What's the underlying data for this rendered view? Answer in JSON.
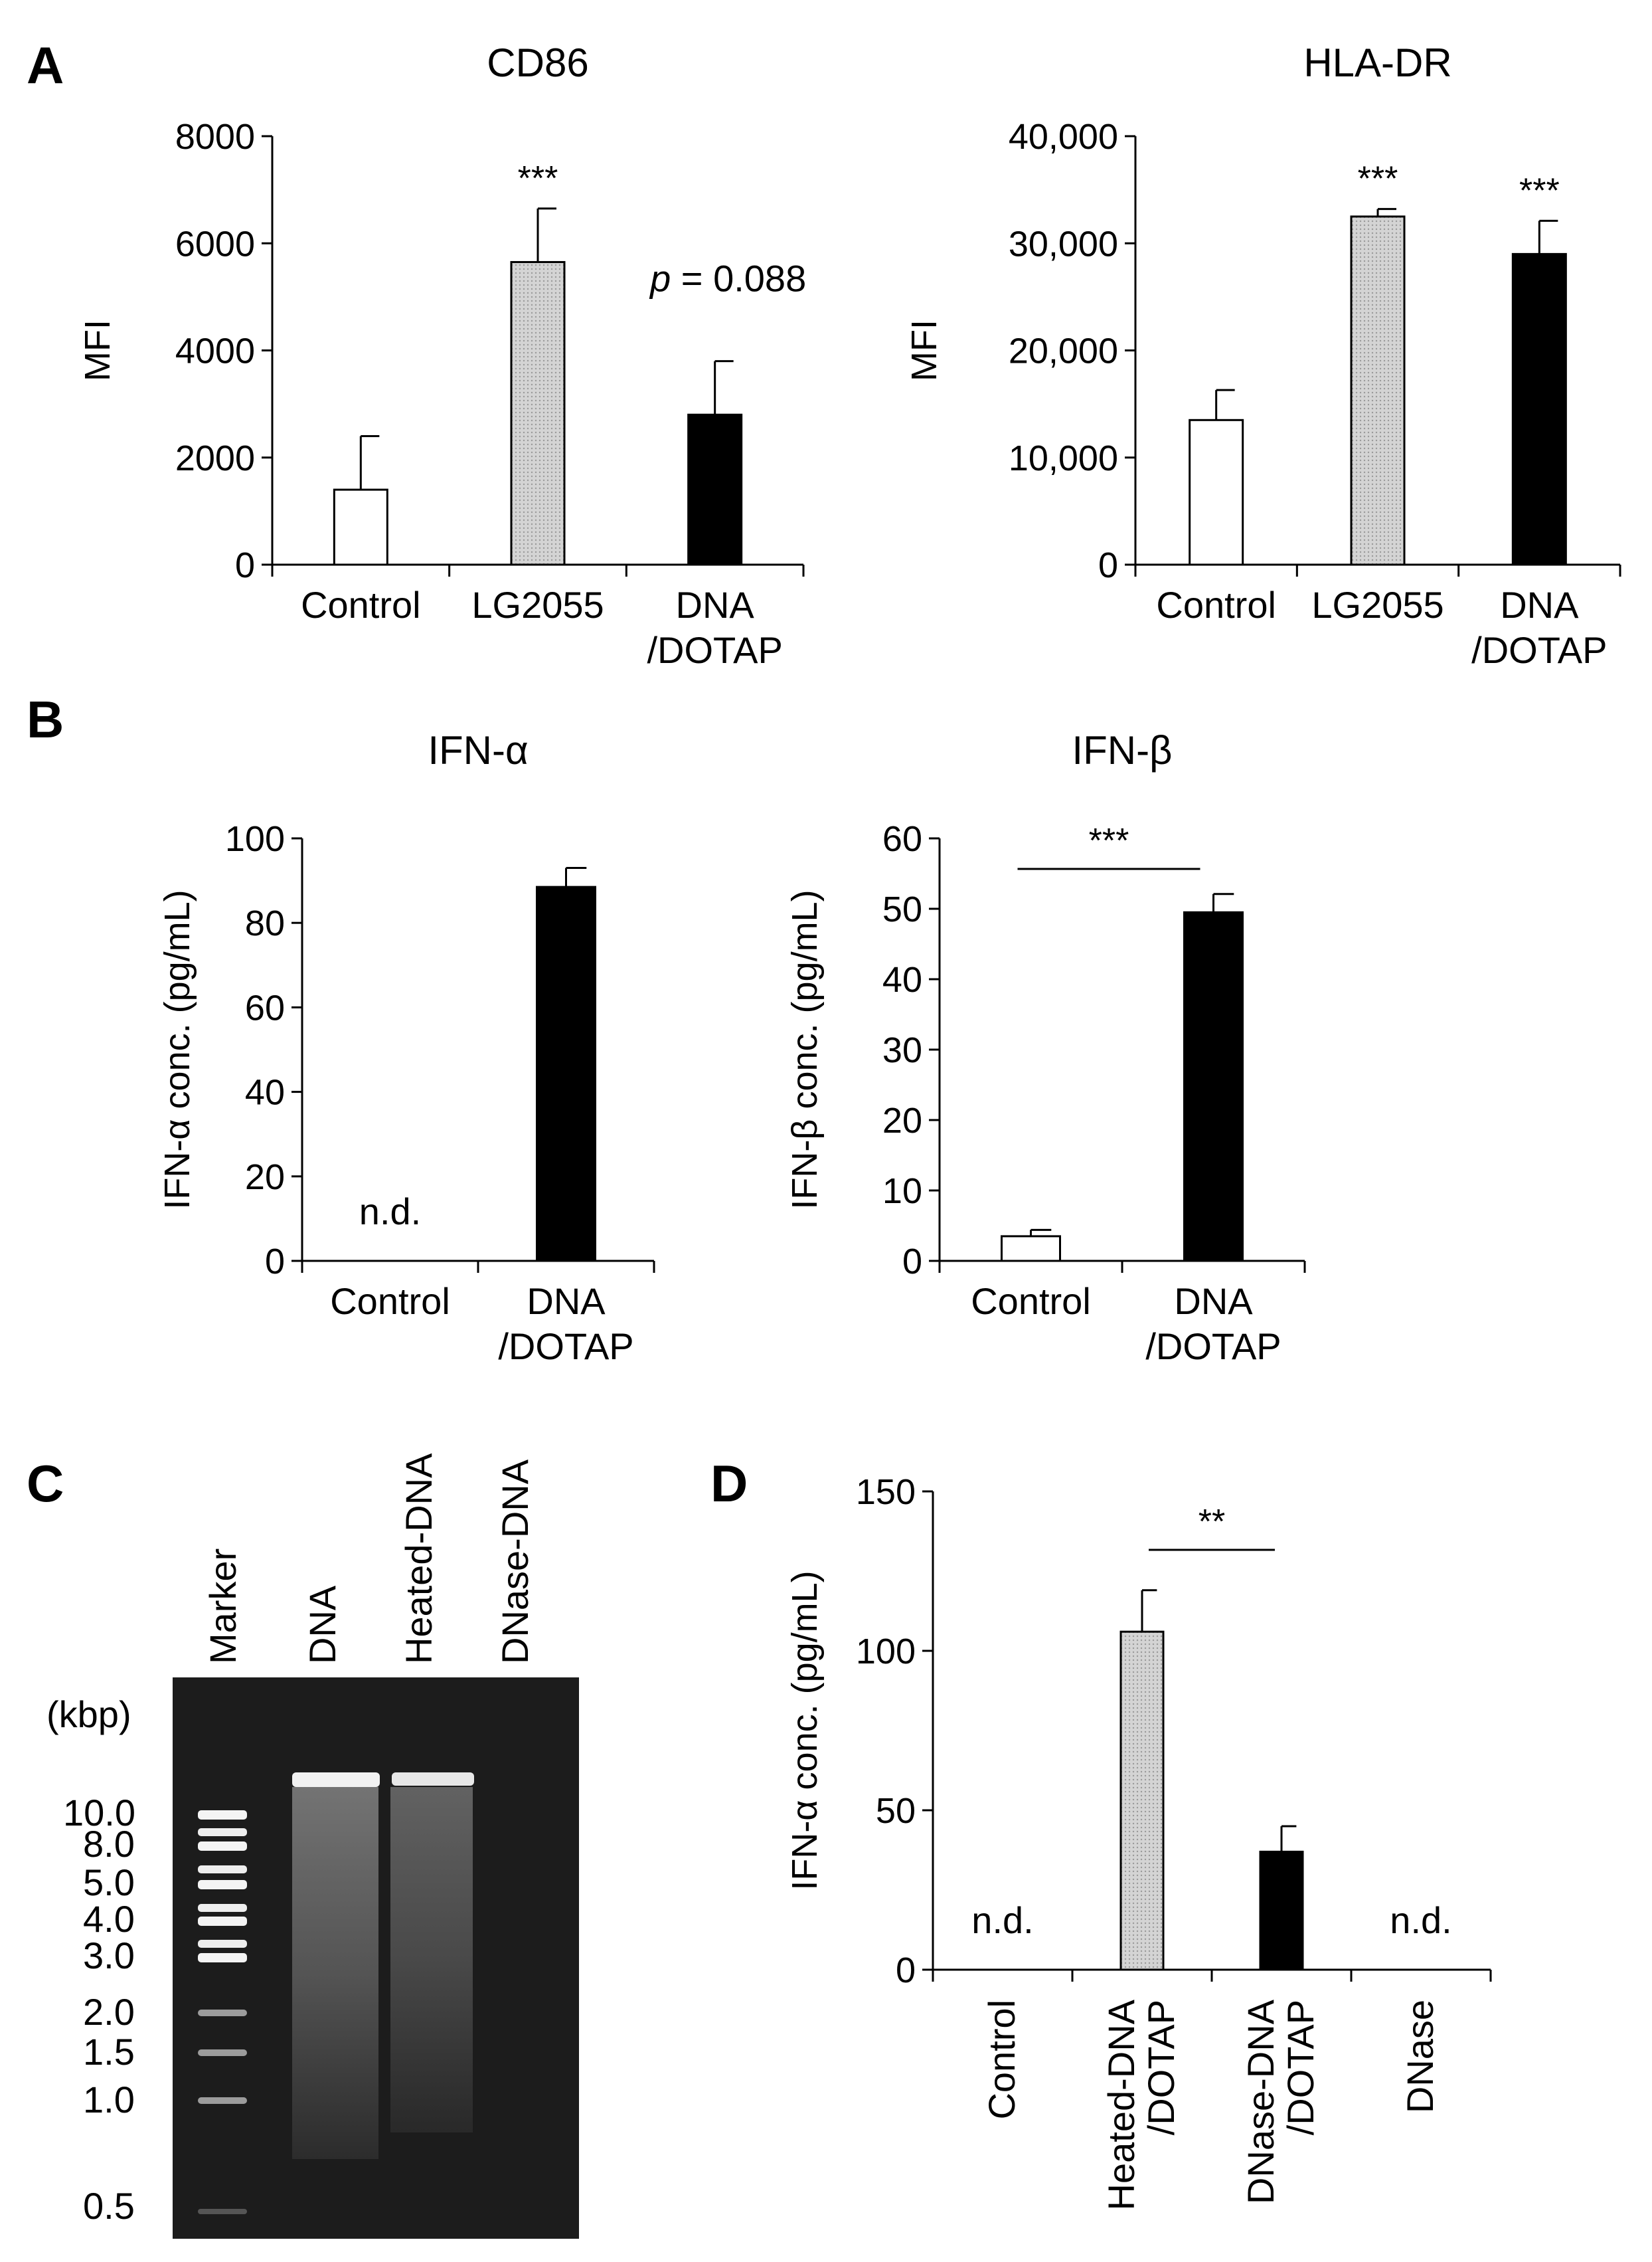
{
  "panels": {
    "A": "A",
    "B": "B",
    "C": "C",
    "D": "D"
  },
  "colors": {
    "white": "#ffffff",
    "gray": "#c8c8c8",
    "black": "#000000"
  },
  "gel": {
    "lanes": [
      "Marker",
      "DNA",
      "Heated-DNA",
      "DNase-DNA"
    ],
    "unit": "(kbp)",
    "marker_sizes": [
      "10.0",
      "8.0",
      "5.0",
      "4.0",
      "3.0",
      "2.0",
      "1.5",
      "1.0",
      "0.5"
    ]
  },
  "chart_data": [
    {
      "id": "cd86",
      "type": "bar",
      "title": "CD86",
      "ylabel": "MFI",
      "ylim": [
        0,
        8000
      ],
      "yticks": [
        0,
        2000,
        4000,
        6000,
        8000
      ],
      "ytick_labels": [
        "0",
        "2000",
        "4000",
        "6000",
        "8000"
      ],
      "categories": [
        [
          "Control"
        ],
        [
          "LG2055"
        ],
        [
          "DNA",
          "/DOTAP"
        ]
      ],
      "values": [
        1400,
        5650,
        2800
      ],
      "errors": [
        1000,
        1000,
        1000
      ],
      "fills": [
        "white",
        "gray",
        "black"
      ],
      "annotations": [
        "",
        "***",
        ""
      ],
      "pvalue": {
        "prefix": "p",
        "text": " = 0.088"
      }
    },
    {
      "id": "hladr",
      "type": "bar",
      "title": "HLA-DR",
      "ylabel": "MFI",
      "ylim": [
        0,
        40000
      ],
      "yticks": [
        0,
        10000,
        20000,
        30000,
        40000
      ],
      "ytick_labels": [
        "0",
        "10,000",
        "20,000",
        "30,000",
        "40,000"
      ],
      "categories": [
        [
          "Control"
        ],
        [
          "LG2055"
        ],
        [
          "DNA",
          "/DOTAP"
        ]
      ],
      "values": [
        13500,
        32500,
        29000
      ],
      "errors": [
        2800,
        700,
        3100
      ],
      "fills": [
        "white",
        "gray",
        "black"
      ],
      "annotations": [
        "",
        "***",
        "***"
      ]
    },
    {
      "id": "ifna",
      "type": "bar",
      "title": "IFN-α",
      "ylabel": "IFN-α conc. (pg/mL)",
      "ylim": [
        0,
        100
      ],
      "yticks": [
        0,
        20,
        40,
        60,
        80,
        100
      ],
      "ytick_labels": [
        "0",
        "20",
        "40",
        "60",
        "80",
        "100"
      ],
      "categories": [
        [
          "Control"
        ],
        [
          "DNA",
          "/DOTAP"
        ]
      ],
      "values": [
        null,
        88.5
      ],
      "errors": [
        0,
        4.5
      ],
      "fills": [
        "white",
        "black"
      ],
      "annotations": [
        "",
        ""
      ],
      "nd_labels": [
        "n.d.",
        ""
      ]
    },
    {
      "id": "ifnb",
      "type": "bar",
      "title": "IFN-β",
      "ylabel": "IFN-β conc. (pg/mL)",
      "ylim": [
        0,
        60
      ],
      "yticks": [
        0,
        10,
        20,
        30,
        40,
        50,
        60
      ],
      "ytick_labels": [
        "0",
        "10",
        "20",
        "30",
        "40",
        "50",
        "60"
      ],
      "categories": [
        [
          "Control"
        ],
        [
          "DNA",
          "/DOTAP"
        ]
      ],
      "values": [
        3.5,
        49.5
      ],
      "errors": [
        0.9,
        2.6
      ],
      "fills": [
        "white",
        "black"
      ],
      "annotations": [
        "",
        ""
      ],
      "bracket": {
        "from": 0,
        "to": 1,
        "label": "***"
      }
    },
    {
      "id": "ifna_d",
      "type": "bar",
      "title": "",
      "ylabel": "IFN-α conc. (pg/mL)",
      "ylim": [
        0,
        150
      ],
      "yticks": [
        0,
        50,
        100,
        150
      ],
      "ytick_labels": [
        "0",
        "50",
        "100",
        "150"
      ],
      "categories": [
        [
          "Control"
        ],
        [
          "Heated-DNA",
          "/DOTAP"
        ],
        [
          "DNase-DNA",
          "/DOTAP"
        ],
        [
          "DNase"
        ]
      ],
      "values": [
        null,
        106,
        37,
        null
      ],
      "errors": [
        0,
        13,
        8,
        0
      ],
      "fills": [
        "white",
        "gray",
        "black",
        "white"
      ],
      "annotations": [
        "",
        "",
        "",
        ""
      ],
      "nd_labels": [
        "n.d.",
        "",
        "",
        "n.d."
      ],
      "bracket": {
        "from": 1,
        "to": 2,
        "label": "**"
      }
    }
  ]
}
